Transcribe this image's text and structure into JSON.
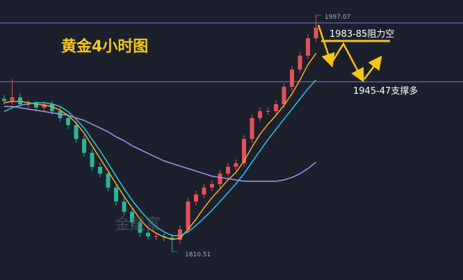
{
  "chart_data": {
    "type": "candlestick",
    "title": "黄金4小时图",
    "watermark": "金晟富",
    "ylim": [
      1788,
      2009.1
    ],
    "open": [
      1931.0,
      1929.5,
      1932.3,
      1926.8,
      1926.8,
      1924.1,
      1926.8,
      1921.3,
      1915.8,
      1910.3,
      1899.4,
      1888.4,
      1877.4,
      1872.0,
      1861.0,
      1850.0,
      1841.8,
      1833.5,
      1825.3,
      1822.5,
      1822.5,
      1821.5,
      1819.8,
      1828.0,
      1850.0,
      1855.5,
      1861.0,
      1863.7,
      1872.0,
      1877.4,
      1880.2,
      1899.4,
      1915.8,
      1921.3,
      1921.3,
      1926.8,
      1940.5,
      1954.2,
      1965.2,
      1978.9
    ],
    "high": [
      1934.0,
      1946.5,
      1935.3,
      1929.8,
      1929.5,
      1928.8,
      1929.5,
      1924.3,
      1918.8,
      1913.3,
      1902.4,
      1891.4,
      1880.4,
      1875.0,
      1864.0,
      1853.0,
      1844.8,
      1836.5,
      1828.3,
      1825.5,
      1825.0,
      1824.5,
      1831.0,
      1853.0,
      1858.5,
      1864.0,
      1866.7,
      1875.0,
      1880.4,
      1883.2,
      1902.4,
      1918.8,
      1924.3,
      1924.3,
      1929.8,
      1943.5,
      1957.2,
      1968.2,
      1981.9,
      1997.07
    ],
    "low": [
      1926.5,
      1926.5,
      1923.8,
      1923.8,
      1921.1,
      1921.1,
      1918.3,
      1912.8,
      1907.3,
      1896.4,
      1885.4,
      1874.4,
      1869.0,
      1858.0,
      1847.0,
      1838.8,
      1830.5,
      1822.3,
      1819.5,
      1819.5,
      1818.5,
      1810.51,
      1816.8,
      1825.0,
      1847.0,
      1852.5,
      1858.0,
      1860.7,
      1869.0,
      1874.4,
      1877.2,
      1896.4,
      1912.8,
      1918.3,
      1918.3,
      1923.8,
      1937.5,
      1951.2,
      1962.2,
      1975.9
    ],
    "close": [
      1929.5,
      1932.3,
      1926.8,
      1926.8,
      1924.1,
      1926.8,
      1921.3,
      1915.8,
      1910.3,
      1899.4,
      1888.4,
      1877.4,
      1872.0,
      1861.0,
      1850.0,
      1841.8,
      1833.5,
      1825.3,
      1822.5,
      1822.5,
      1821.5,
      1819.8,
      1828.0,
      1850.0,
      1855.5,
      1861.0,
      1863.7,
      1872.0,
      1877.4,
      1880.2,
      1899.4,
      1915.8,
      1921.3,
      1921.3,
      1926.8,
      1940.5,
      1954.2,
      1965.2,
      1978.9,
      1987.2
    ],
    "up_color": "#e5505c",
    "down_color": "#2bb39b",
    "series": [
      {
        "color": "#f5a623",
        "values": [
          1928,
          1929,
          1929,
          1928,
          1927,
          1926,
          1925,
          1922,
          1918,
          1912,
          1904,
          1894,
          1884,
          1874,
          1864,
          1854,
          1845,
          1836,
          1829,
          1825,
          1822,
          1820,
          1821,
          1828,
          1836,
          1845,
          1853,
          1860,
          1867,
          1873,
          1882,
          1893,
          1903,
          1911,
          1918,
          1926,
          1935,
          1946,
          1958,
          1967
        ]
      },
      {
        "color": "#2cc0e0",
        "values": [
          1921,
          1924,
          1926,
          1927,
          1928,
          1928,
          1927,
          1925,
          1921,
          1915,
          1908,
          1899,
          1890,
          1880,
          1870,
          1860,
          1851,
          1843,
          1836,
          1830,
          1826,
          1823,
          1823,
          1826,
          1831,
          1837,
          1843,
          1850,
          1857,
          1864,
          1872,
          1881,
          1890,
          1899,
          1907,
          1915,
          1923,
          1931,
          1939,
          1946
        ]
      },
      {
        "color": "#a98ae8",
        "values": [
          1925,
          1925,
          1924,
          1923,
          1922,
          1921,
          1920,
          1919,
          1918,
          1916,
          1914,
          1911,
          1908,
          1905,
          1901,
          1898,
          1894,
          1891,
          1888,
          1885,
          1882,
          1880,
          1878,
          1876,
          1874,
          1872,
          1870,
          1869,
          1868,
          1867,
          1866,
          1866,
          1866,
          1866,
          1866,
          1867,
          1869,
          1872,
          1876,
          1881
        ]
      }
    ],
    "levels": [
      1991,
      1944.5
    ],
    "level_color": "#8a6fe0",
    "max_label": "1997.07",
    "min_label": "1810.51",
    "annotations": [
      "1983-85阻力空",
      "1945-47支撑多"
    ]
  }
}
